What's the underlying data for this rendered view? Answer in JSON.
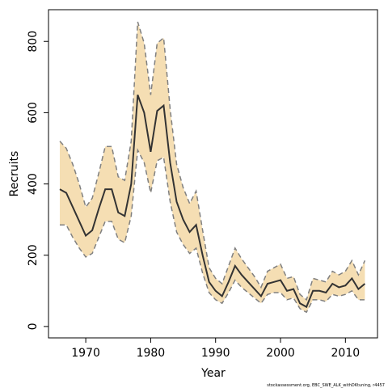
{
  "chart_data": {
    "type": "line",
    "xlabel": "Year",
    "ylabel": "Recruits",
    "footnote": "stockassessment.org, EBC_SWE_ALK_withDKtuning, r4457",
    "x": [
      1966,
      1967,
      1968,
      1969,
      1970,
      1971,
      1972,
      1973,
      1974,
      1975,
      1976,
      1977,
      1978,
      1979,
      1980,
      1981,
      1982,
      1983,
      1984,
      1985,
      1986,
      1987,
      1988,
      1989,
      1990,
      1991,
      1992,
      1993,
      1994,
      1995,
      1996,
      1997,
      1998,
      1999,
      2000,
      2001,
      2002,
      2003,
      2004,
      2005,
      2006,
      2007,
      2008,
      2009,
      2010,
      2011,
      2012,
      2013
    ],
    "values": [
      385,
      375,
      335,
      295,
      255,
      270,
      330,
      385,
      385,
      320,
      310,
      400,
      650,
      600,
      490,
      605,
      620,
      460,
      350,
      300,
      265,
      285,
      200,
      125,
      100,
      85,
      125,
      170,
      145,
      125,
      105,
      85,
      120,
      125,
      130,
      100,
      105,
      65,
      55,
      100,
      100,
      95,
      120,
      110,
      115,
      135,
      105,
      120
    ],
    "upper": [
      520,
      500,
      455,
      400,
      335,
      360,
      430,
      505,
      505,
      420,
      410,
      520,
      855,
      795,
      650,
      795,
      810,
      610,
      455,
      390,
      345,
      380,
      270,
      165,
      135,
      120,
      170,
      220,
      190,
      165,
      140,
      110,
      155,
      165,
      175,
      135,
      140,
      90,
      75,
      135,
      130,
      125,
      155,
      145,
      155,
      185,
      145,
      185
    ],
    "lower": [
      285,
      285,
      250,
      220,
      195,
      205,
      250,
      295,
      295,
      245,
      235,
      310,
      495,
      460,
      375,
      465,
      475,
      350,
      265,
      230,
      205,
      220,
      150,
      95,
      75,
      65,
      95,
      130,
      110,
      95,
      80,
      65,
      90,
      95,
      95,
      75,
      80,
      50,
      40,
      75,
      75,
      70,
      90,
      85,
      90,
      100,
      75,
      75
    ],
    "color": "#333333",
    "band_color": "#f5deb3",
    "band_edge_color": "#808080",
    "xlim": [
      1964.26,
      2014.94
    ],
    "ylim": [
      -32,
      889
    ],
    "xticks": [
      1970,
      1980,
      1990,
      2000,
      2010
    ],
    "yticks": [
      0,
      200,
      400,
      600,
      800
    ]
  }
}
